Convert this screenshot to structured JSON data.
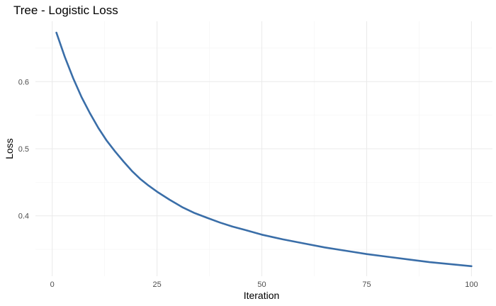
{
  "chart_data": {
    "type": "line",
    "title": "Tree - Logistic Loss",
    "xlabel": "Iteration",
    "ylabel": "Loss",
    "xlim": [
      -4,
      105
    ],
    "ylim": [
      0.31,
      0.69
    ],
    "x_ticks": [
      0,
      25,
      50,
      75,
      100
    ],
    "y_ticks": [
      0.4,
      0.5,
      0.6
    ],
    "x_tick_labels": [
      "0",
      "25",
      "50",
      "75",
      "100"
    ],
    "y_tick_labels": [
      "0.4",
      "0.5",
      "0.6"
    ],
    "grid": true,
    "legend": "none",
    "series": [
      {
        "color": "#3a6ea8",
        "x": [
          1,
          3,
          5,
          7,
          9,
          11,
          13,
          15,
          17,
          19,
          21,
          23,
          25,
          28,
          31,
          34,
          37,
          40,
          43,
          46,
          50,
          55,
          60,
          65,
          70,
          75,
          80,
          85,
          90,
          95,
          100
        ],
        "y": [
          0.673,
          0.637,
          0.605,
          0.577,
          0.553,
          0.531,
          0.512,
          0.496,
          0.481,
          0.467,
          0.455,
          0.445,
          0.436,
          0.424,
          0.413,
          0.404,
          0.397,
          0.39,
          0.384,
          0.379,
          0.372,
          0.365,
          0.359,
          0.353,
          0.348,
          0.343,
          0.339,
          0.335,
          0.331,
          0.328,
          0.325
        ]
      }
    ]
  }
}
